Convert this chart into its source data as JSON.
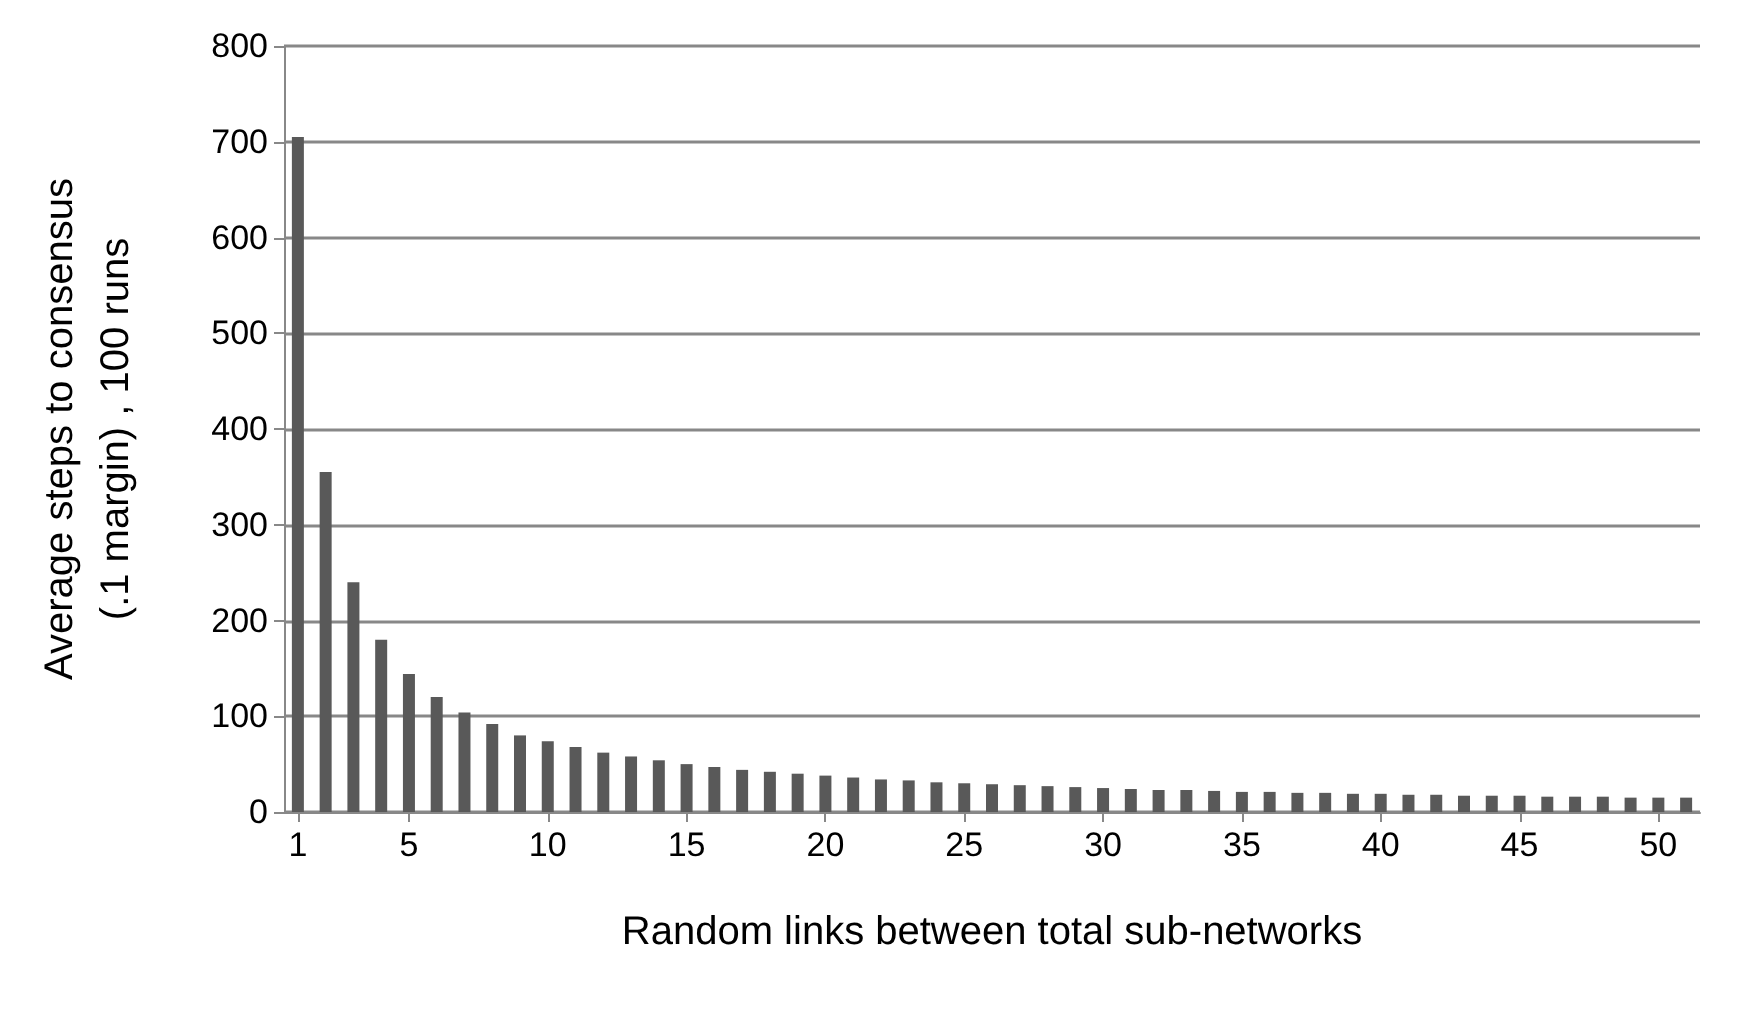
{
  "chart_data": {
    "type": "bar",
    "xlabel": "Random links between total sub-networks",
    "ylabel": "Average steps to consensus\n(.1 margin) , 100 runs",
    "x": [
      1,
      2,
      3,
      4,
      5,
      6,
      7,
      8,
      9,
      10,
      11,
      12,
      13,
      14,
      15,
      16,
      17,
      18,
      19,
      20,
      21,
      22,
      23,
      24,
      25,
      26,
      27,
      28,
      29,
      30,
      31,
      32,
      33,
      34,
      35,
      36,
      37,
      38,
      39,
      40,
      41,
      42,
      43,
      44,
      45,
      46,
      47,
      48,
      49,
      50,
      51
    ],
    "values": [
      705,
      355,
      240,
      180,
      144,
      120,
      104,
      92,
      80,
      74,
      68,
      62,
      58,
      54,
      50,
      47,
      44,
      42,
      40,
      38,
      36,
      34,
      33,
      31,
      30,
      29,
      28,
      27,
      26,
      25,
      24,
      23,
      23,
      22,
      21,
      21,
      20,
      20,
      19,
      19,
      18,
      18,
      17,
      17,
      17,
      16,
      16,
      16,
      15,
      15,
      15
    ],
    "color": "#595959",
    "xlim": [
      0.5,
      51.5
    ],
    "xticks": [
      1,
      5,
      10,
      15,
      20,
      25,
      30,
      35,
      40,
      45,
      50
    ],
    "ylim": [
      0,
      800
    ],
    "yticks": [
      0,
      100,
      200,
      300,
      400,
      500,
      600,
      700,
      800
    ],
    "grid": "y"
  }
}
